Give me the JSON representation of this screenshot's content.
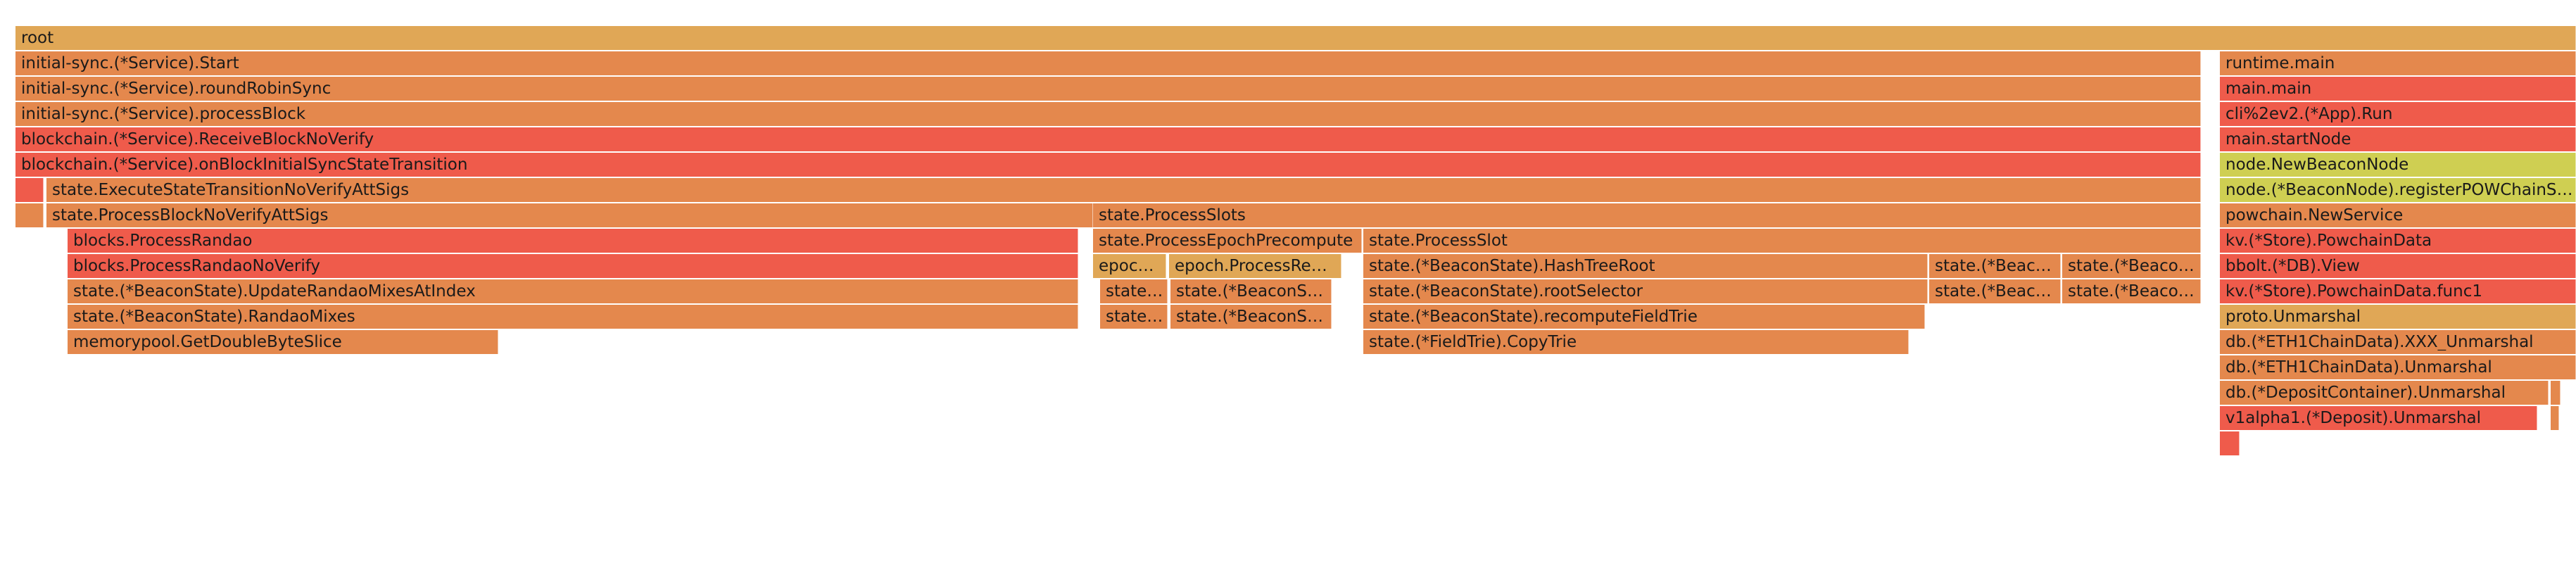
{
  "chart_data": {
    "type": "flamegraph",
    "total": 3660,
    "frames": [
      {
        "name": "root",
        "depth": 0,
        "start": 22,
        "value": 3638,
        "color": "#e0a756"
      },
      {
        "name": "initial-sync.(*Service).Start",
        "depth": 1,
        "start": 22,
        "value": 3105,
        "color": "#e4884d"
      },
      {
        "name": "initial-sync.(*Service).roundRobinSync",
        "depth": 2,
        "start": 22,
        "value": 3105,
        "color": "#e4884d"
      },
      {
        "name": "initial-sync.(*Service).processBlock",
        "depth": 3,
        "start": 22,
        "value": 3105,
        "color": "#e4884d"
      },
      {
        "name": "blockchain.(*Service).ReceiveBlockNoVerify",
        "depth": 4,
        "start": 22,
        "value": 3105,
        "color": "#ef5b4b"
      },
      {
        "name": "blockchain.(*Service).onBlockInitialSyncStateTransition",
        "depth": 5,
        "start": 22,
        "value": 3105,
        "color": "#ef5b4b"
      },
      {
        "name": "",
        "depth": 6,
        "start": 22,
        "value": 40,
        "color": "#ef5b4b"
      },
      {
        "name": "state.ExecuteStateTransitionNoVerifyAttSigs",
        "depth": 6,
        "start": 66,
        "value": 3061,
        "color": "#e4884d"
      },
      {
        "name": "",
        "depth": 7,
        "start": 22,
        "value": 40,
        "color": "#e4884d"
      },
      {
        "name": "state.ProcessBlockNoVerifyAttSigs",
        "depth": 7,
        "start": 66,
        "value": 1487,
        "color": "#e4884d"
      },
      {
        "name": "state.ProcessSlots",
        "depth": 7,
        "start": 1553,
        "value": 1574,
        "color": "#e4884d"
      },
      {
        "name": "blocks.ProcessRandao",
        "depth": 8,
        "start": 96,
        "value": 1436,
        "color": "#ef5b4b"
      },
      {
        "name": "blocks.ProcessRandaoNoVerify",
        "depth": 9,
        "start": 96,
        "value": 1436,
        "color": "#ef5b4b"
      },
      {
        "name": "state.(*BeaconState).UpdateRandaoMixesAtIndex",
        "depth": 10,
        "start": 96,
        "value": 1436,
        "color": "#e4884d"
      },
      {
        "name": "state.(*BeaconState).RandaoMixes",
        "depth": 11,
        "start": 96,
        "value": 1436,
        "color": "#e4884d"
      },
      {
        "name": "memorypool.GetDoubleByteSlice",
        "depth": 12,
        "start": 96,
        "value": 612,
        "color": "#e4884d"
      },
      {
        "name": "state.ProcessEpochPrecompute",
        "depth": 8,
        "start": 1553,
        "value": 382,
        "color": "#e4884d"
      },
      {
        "name": "state.ProcessSlot",
        "depth": 8,
        "start": 1937,
        "value": 1190,
        "color": "#e4884d"
      },
      {
        "name": "epoch.ProcessRegistryUpdates",
        "depth": 9,
        "start": 1553,
        "value": 104,
        "color": "#e0a756"
      },
      {
        "name": "epoch.ProcessRewardsAndPenalties",
        "depth": 9,
        "start": 1661,
        "value": 245,
        "color": "#e0a756"
      },
      {
        "name": "state.(*BeaconState).HashTreeRoot",
        "depth": 9,
        "start": 1937,
        "value": 802,
        "color": "#e4884d"
      },
      {
        "name": "state.(*BeaconState).BlockRoots",
        "depth": 9,
        "start": 2741,
        "value": 187,
        "color": "#e4884d"
      },
      {
        "name": "state.(*BeaconState).StateRoots",
        "depth": 9,
        "start": 2930,
        "value": 197,
        "color": "#e4884d"
      },
      {
        "name": "state.(*BeaconState).Copy",
        "depth": 10,
        "start": 1563,
        "value": 96,
        "color": "#e4884d"
      },
      {
        "name": "state.(*BeaconState).Validators",
        "depth": 10,
        "start": 1663,
        "value": 229,
        "color": "#e4884d"
      },
      {
        "name": "state.(*BeaconState).rootSelector",
        "depth": 10,
        "start": 1937,
        "value": 802,
        "color": "#e4884d"
      },
      {
        "name": "state.(*BeaconState).BlockRoots",
        "depth": 10,
        "start": 2741,
        "value": 187,
        "color": "#e4884d"
      },
      {
        "name": "state.(*BeaconState).StateRoots",
        "depth": 10,
        "start": 2930,
        "value": 197,
        "color": "#e4884d"
      },
      {
        "name": "state.(*BeaconState).Copy",
        "depth": 11,
        "start": 1563,
        "value": 96,
        "color": "#e4884d"
      },
      {
        "name": "state.(*BeaconState).Validators",
        "depth": 11,
        "start": 1663,
        "value": 229,
        "color": "#e4884d"
      },
      {
        "name": "state.(*BeaconState).recomputeFieldTrie",
        "depth": 11,
        "start": 1937,
        "value": 798,
        "color": "#e4884d"
      },
      {
        "name": "state.(*FieldTrie).CopyTrie",
        "depth": 12,
        "start": 1937,
        "value": 775,
        "color": "#e4884d"
      },
      {
        "name": "runtime.main",
        "depth": 1,
        "start": 3154,
        "value": 506,
        "color": "#e4884d"
      },
      {
        "name": "main.main",
        "depth": 2,
        "start": 3154,
        "value": 506,
        "color": "#ef5b4b"
      },
      {
        "name": "cli%2ev2.(*App).Run",
        "depth": 3,
        "start": 3154,
        "value": 506,
        "color": "#ef5b4b"
      },
      {
        "name": "main.startNode",
        "depth": 4,
        "start": 3154,
        "value": 506,
        "color": "#ef5b4b"
      },
      {
        "name": "node.NewBeaconNode",
        "depth": 5,
        "start": 3154,
        "value": 506,
        "color": "#cfcf52"
      },
      {
        "name": "node.(*BeaconNode).registerPOWChainService",
        "depth": 6,
        "start": 3154,
        "value": 506,
        "color": "#cfcf52"
      },
      {
        "name": "powchain.NewService",
        "depth": 7,
        "start": 3154,
        "value": 506,
        "color": "#e4884d"
      },
      {
        "name": "kv.(*Store).PowchainData",
        "depth": 8,
        "start": 3154,
        "value": 506,
        "color": "#ef5b4b"
      },
      {
        "name": "bbolt.(*DB).View",
        "depth": 9,
        "start": 3154,
        "value": 506,
        "color": "#ef5b4b"
      },
      {
        "name": "kv.(*Store).PowchainData.func1",
        "depth": 10,
        "start": 3154,
        "value": 506,
        "color": "#ef5b4b"
      },
      {
        "name": "proto.Unmarshal",
        "depth": 11,
        "start": 3154,
        "value": 506,
        "color": "#e0a756"
      },
      {
        "name": "db.(*ETH1ChainData).XXX_Unmarshal",
        "depth": 12,
        "start": 3154,
        "value": 506,
        "color": "#e4884d"
      },
      {
        "name": "db.(*ETH1ChainData).Unmarshal",
        "depth": 13,
        "start": 3154,
        "value": 506,
        "color": "#e4884d"
      },
      {
        "name": "db.(*DepositContainer).Unmarshal",
        "depth": 14,
        "start": 3154,
        "value": 467,
        "color": "#e4884d"
      },
      {
        "name": "",
        "depth": 14,
        "start": 3624,
        "value": 14,
        "color": "#e4884d"
      },
      {
        "name": "v1alpha1.(*Deposit).Unmarshal",
        "depth": 15,
        "start": 3154,
        "value": 451,
        "color": "#ef5b4b"
      },
      {
        "name": "",
        "depth": 15,
        "start": 3624,
        "value": 12,
        "color": "#e4884d"
      },
      {
        "name": "",
        "depth": 16,
        "start": 3154,
        "value": 28,
        "color": "#ef5b4b"
      }
    ]
  }
}
